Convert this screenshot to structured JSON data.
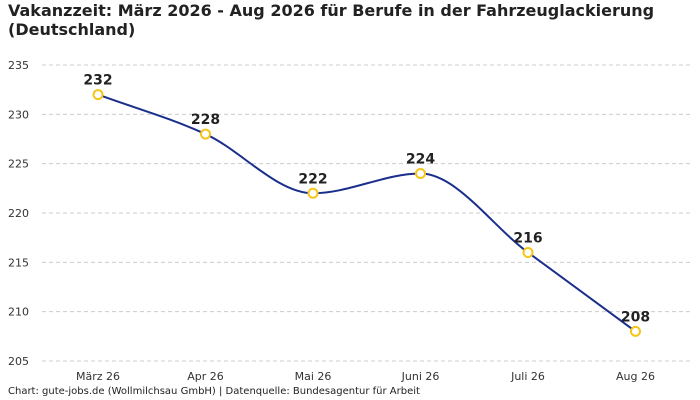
{
  "title": "Vakanzzeit: März 2026 - Aug 2026 für Berufe in der Fahrzeuglackierung (Deutschland)",
  "footer": "Chart: gute-jobs.de (Wollmilchsau GmbH) | Datenquelle: Bundesagentur für Arbeit",
  "colors": {
    "line": "#1a2f8c",
    "marker_stroke": "#f5c518",
    "marker_fill": "#ffffff",
    "grid": "#cccccc"
  },
  "chart_data": {
    "type": "line",
    "title": "Vakanzzeit: März 2026 - Aug 2026 für Berufe in der Fahrzeuglackierung (Deutschland)",
    "xlabel": "",
    "ylabel": "",
    "categories": [
      "März 26",
      "Apr 26",
      "Mai 26",
      "Juni 26",
      "Juli 26",
      "Aug 26"
    ],
    "values": [
      232,
      228,
      222,
      224,
      216,
      208
    ],
    "data_labels": [
      "232",
      "228",
      "222",
      "224",
      "216",
      "208"
    ],
    "ylim": [
      205,
      235
    ],
    "yticks": [
      205,
      210,
      215,
      220,
      225,
      230,
      235
    ],
    "grid": "horizontal dashed",
    "legend": "none"
  }
}
